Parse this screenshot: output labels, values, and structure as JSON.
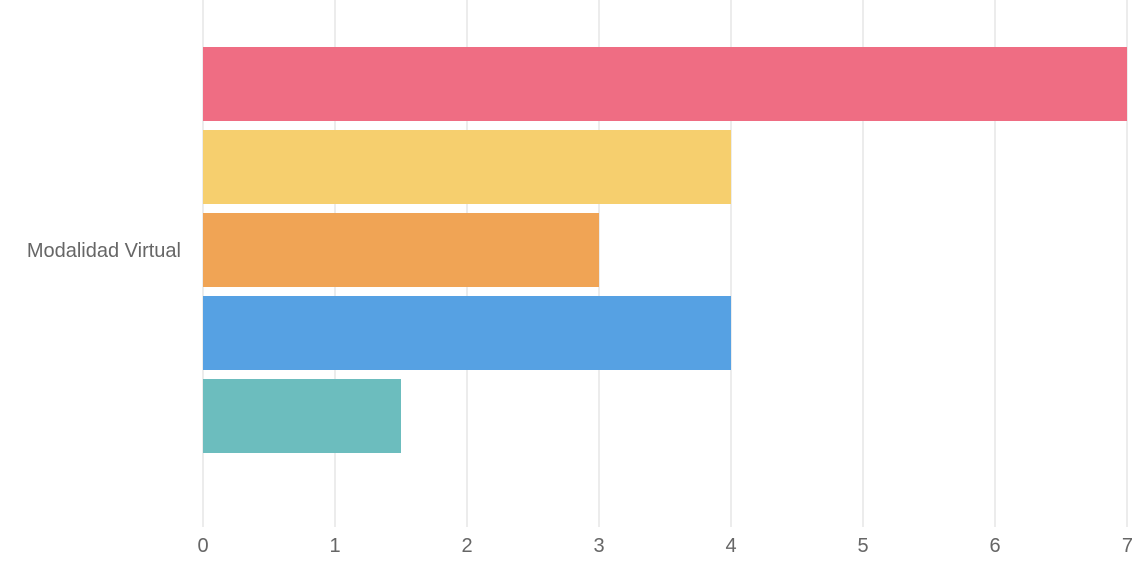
{
  "chart_data": {
    "type": "bar",
    "orientation": "horizontal",
    "title": "",
    "xlabel": "",
    "ylabel": "",
    "categories": [
      "Modalidad Virtual"
    ],
    "series": [
      {
        "values": [
          7
        ],
        "color": "#EF6D83"
      },
      {
        "values": [
          4
        ],
        "color": "#F6CF6E"
      },
      {
        "values": [
          3
        ],
        "color": "#F0A455"
      },
      {
        "values": [
          4
        ],
        "color": "#56A1E3"
      },
      {
        "values": [
          1.5
        ],
        "color": "#6CBDBE"
      }
    ],
    "xlim": [
      0,
      7
    ],
    "x_ticks": [
      "0",
      "1",
      "2",
      "3",
      "4",
      "5",
      "6",
      "7"
    ],
    "grid": true,
    "legend": "none"
  }
}
